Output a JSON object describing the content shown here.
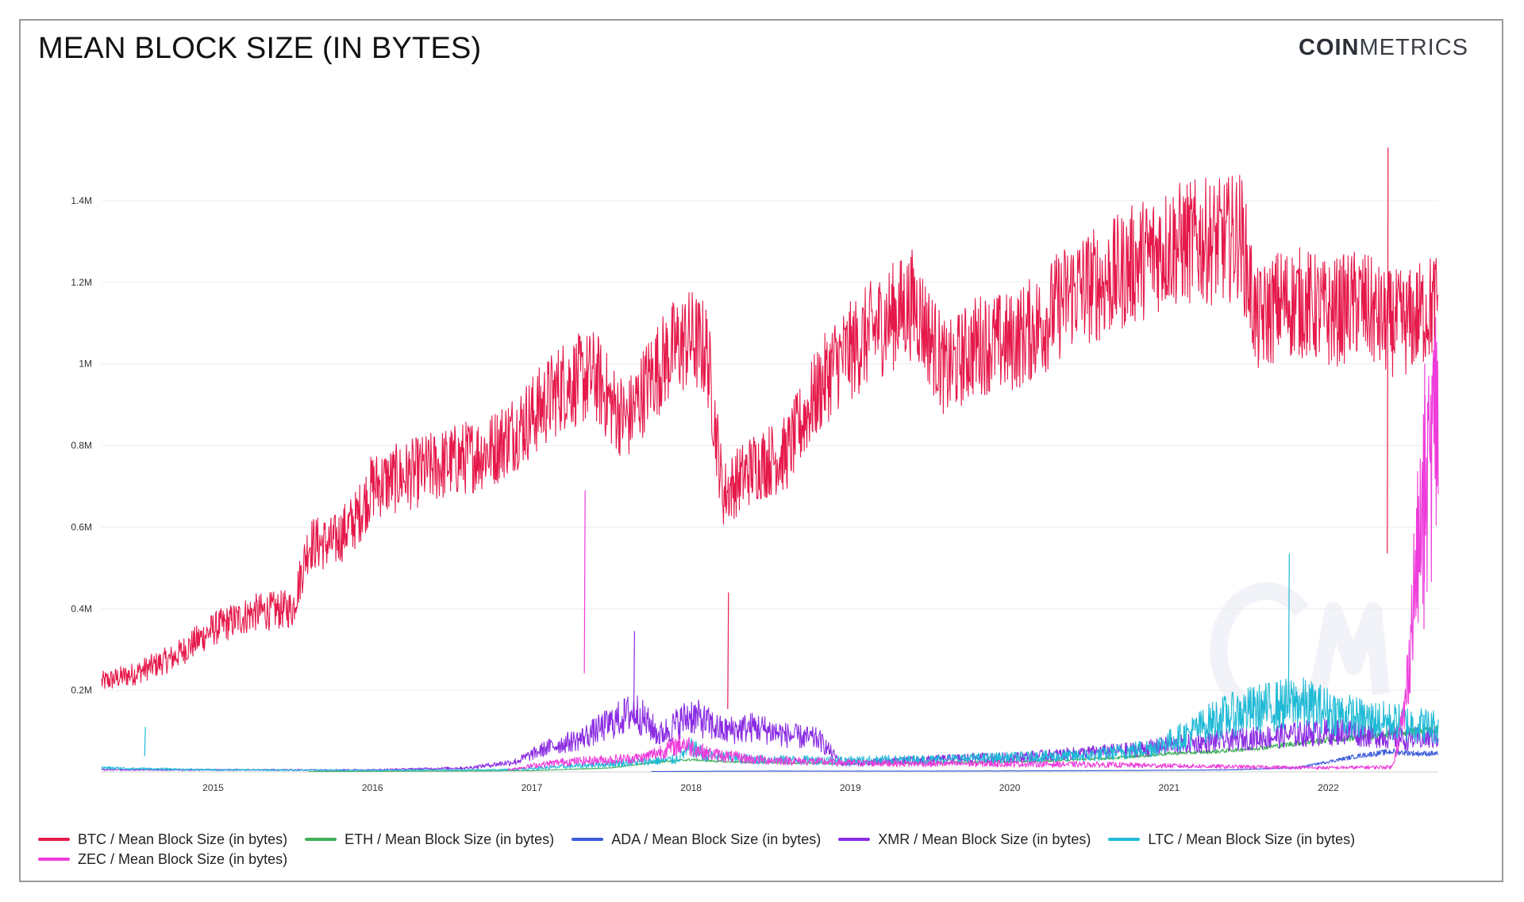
{
  "header": {
    "title": "MEAN BLOCK SIZE (IN BYTES)",
    "brand_bold": "COIN",
    "brand_rest": "METRICS"
  },
  "chart_data": {
    "type": "line",
    "title": "MEAN BLOCK SIZE (IN BYTES)",
    "xlabel": "",
    "ylabel": "",
    "xlim": [
      2014.3,
      2022.69
    ],
    "ylim": [
      0,
      1600000
    ],
    "grid": true,
    "legend": "bottom",
    "x_ticks": [
      {
        "value": 2015,
        "label": "2015"
      },
      {
        "value": 2016,
        "label": "2016"
      },
      {
        "value": 2017,
        "label": "2017"
      },
      {
        "value": 2018,
        "label": "2018"
      },
      {
        "value": 2019,
        "label": "2019"
      },
      {
        "value": 2020,
        "label": "2020"
      },
      {
        "value": 2021,
        "label": "2021"
      },
      {
        "value": 2022,
        "label": "2022"
      }
    ],
    "y_ticks": [
      {
        "value": 200000,
        "label": "0.2M"
      },
      {
        "value": 400000,
        "label": "0.4M"
      },
      {
        "value": 600000,
        "label": "0.6M"
      },
      {
        "value": 800000,
        "label": "0.8M"
      },
      {
        "value": 1000000,
        "label": "1M"
      },
      {
        "value": 1200000,
        "label": "1.2M"
      },
      {
        "value": 1400000,
        "label": "1.4M"
      }
    ],
    "series": [
      {
        "name": "BTC / Mean Block Size (in bytes)",
        "color": "#e5194a",
        "noise": 0.12,
        "points": [
          [
            2014.3,
            220000
          ],
          [
            2014.5,
            240000
          ],
          [
            2014.75,
            280000
          ],
          [
            2015.0,
            350000
          ],
          [
            2015.25,
            390000
          ],
          [
            2015.5,
            400000
          ],
          [
            2015.6,
            560000
          ],
          [
            2015.75,
            560000
          ],
          [
            2015.9,
            620000
          ],
          [
            2016.0,
            700000
          ],
          [
            2016.25,
            730000
          ],
          [
            2016.5,
            760000
          ],
          [
            2016.75,
            790000
          ],
          [
            2017.0,
            870000
          ],
          [
            2017.2,
            950000
          ],
          [
            2017.4,
            970000
          ],
          [
            2017.5,
            900000
          ],
          [
            2017.6,
            860000
          ],
          [
            2017.75,
            970000
          ],
          [
            2017.9,
            1040000
          ],
          [
            2018.0,
            1060000
          ],
          [
            2018.1,
            1030000
          ],
          [
            2018.2,
            680000
          ],
          [
            2018.4,
            750000
          ],
          [
            2018.6,
            780000
          ],
          [
            2018.75,
            900000
          ],
          [
            2018.9,
            1000000
          ],
          [
            2019.0,
            1030000
          ],
          [
            2019.2,
            1100000
          ],
          [
            2019.4,
            1150000
          ],
          [
            2019.6,
            980000
          ],
          [
            2019.8,
            1050000
          ],
          [
            2020.0,
            1050000
          ],
          [
            2020.2,
            1100000
          ],
          [
            2020.4,
            1180000
          ],
          [
            2020.6,
            1200000
          ],
          [
            2020.8,
            1250000
          ],
          [
            2021.0,
            1290000
          ],
          [
            2021.2,
            1300000
          ],
          [
            2021.35,
            1300000
          ],
          [
            2021.45,
            1320000
          ],
          [
            2021.55,
            1100000
          ],
          [
            2021.7,
            1150000
          ],
          [
            2021.85,
            1150000
          ],
          [
            2022.0,
            1120000
          ],
          [
            2022.2,
            1150000
          ],
          [
            2022.35,
            1100000
          ],
          [
            2022.5,
            1100000
          ],
          [
            2022.69,
            1150000
          ]
        ]
      },
      {
        "name": "ETH / Mean Block Size (in bytes)",
        "color": "#3fb15a",
        "noise": 0.1,
        "points": [
          [
            2015.6,
            1000
          ],
          [
            2016.5,
            2000
          ],
          [
            2017.0,
            3000
          ],
          [
            2017.5,
            10000
          ],
          [
            2017.8,
            25000
          ],
          [
            2018.0,
            30000
          ],
          [
            2018.2,
            25000
          ],
          [
            2018.6,
            22000
          ],
          [
            2019.0,
            20000
          ],
          [
            2019.5,
            22000
          ],
          [
            2020.0,
            25000
          ],
          [
            2020.3,
            28000
          ],
          [
            2020.7,
            35000
          ],
          [
            2021.0,
            45000
          ],
          [
            2021.3,
            50000
          ],
          [
            2021.6,
            60000
          ],
          [
            2021.9,
            75000
          ],
          [
            2022.2,
            85000
          ],
          [
            2022.45,
            95000
          ],
          [
            2022.69,
            105000
          ]
        ]
      },
      {
        "name": "ADA / Mean Block Size (in bytes)",
        "color": "#3b5bdb",
        "noise": 0.15,
        "points": [
          [
            2017.75,
            1000
          ],
          [
            2018.5,
            2000
          ],
          [
            2019.5,
            2000
          ],
          [
            2020.5,
            3000
          ],
          [
            2021.0,
            4000
          ],
          [
            2021.4,
            5000
          ],
          [
            2021.8,
            10000
          ],
          [
            2022.0,
            25000
          ],
          [
            2022.2,
            40000
          ],
          [
            2022.4,
            50000
          ],
          [
            2022.55,
            45000
          ],
          [
            2022.69,
            45000
          ]
        ]
      },
      {
        "name": "XMR / Mean Block Size (in bytes)",
        "color": "#8a2be2",
        "noise": 0.35,
        "points": [
          [
            2014.3,
            5000
          ],
          [
            2016.0,
            5000
          ],
          [
            2016.6,
            10000
          ],
          [
            2016.9,
            25000
          ],
          [
            2017.1,
            60000
          ],
          [
            2017.3,
            80000
          ],
          [
            2017.5,
            120000
          ],
          [
            2017.65,
            150000
          ],
          [
            2017.8,
            90000
          ],
          [
            2018.0,
            140000
          ],
          [
            2018.2,
            100000
          ],
          [
            2018.4,
            110000
          ],
          [
            2018.6,
            90000
          ],
          [
            2018.8,
            80000
          ],
          [
            2018.95,
            20000
          ],
          [
            2019.2,
            25000
          ],
          [
            2019.5,
            30000
          ],
          [
            2019.8,
            35000
          ],
          [
            2020.0,
            35000
          ],
          [
            2020.4,
            45000
          ],
          [
            2020.8,
            55000
          ],
          [
            2021.0,
            65000
          ],
          [
            2021.3,
            75000
          ],
          [
            2021.6,
            85000
          ],
          [
            2021.9,
            95000
          ],
          [
            2022.1,
            100000
          ],
          [
            2022.3,
            90000
          ],
          [
            2022.5,
            80000
          ],
          [
            2022.69,
            85000
          ]
        ]
      },
      {
        "name": "LTC / Mean Block Size (in bytes)",
        "color": "#1fbad6",
        "noise": 0.4,
        "points": [
          [
            2014.3,
            10000
          ],
          [
            2014.5,
            8000
          ],
          [
            2015.0,
            5000
          ],
          [
            2016.0,
            4000
          ],
          [
            2016.8,
            5000
          ],
          [
            2017.0,
            8000
          ],
          [
            2017.5,
            20000
          ],
          [
            2017.9,
            30000
          ],
          [
            2018.0,
            60000
          ],
          [
            2018.1,
            40000
          ],
          [
            2018.4,
            30000
          ],
          [
            2019.0,
            28000
          ],
          [
            2019.5,
            30000
          ],
          [
            2020.0,
            35000
          ],
          [
            2020.5,
            40000
          ],
          [
            2020.9,
            60000
          ],
          [
            2021.1,
            90000
          ],
          [
            2021.3,
            130000
          ],
          [
            2021.5,
            150000
          ],
          [
            2021.8,
            170000
          ],
          [
            2022.0,
            150000
          ],
          [
            2022.2,
            130000
          ],
          [
            2022.45,
            120000
          ],
          [
            2022.69,
            110000
          ]
        ]
      },
      {
        "name": "ZEC / Mean Block Size (in bytes)",
        "color": "#ee3cdb",
        "noise": 0.4,
        "points": [
          [
            2016.85,
            5000
          ],
          [
            2017.0,
            15000
          ],
          [
            2017.2,
            25000
          ],
          [
            2017.5,
            30000
          ],
          [
            2017.7,
            35000
          ],
          [
            2017.95,
            70000
          ],
          [
            2018.1,
            45000
          ],
          [
            2018.4,
            30000
          ],
          [
            2018.8,
            25000
          ],
          [
            2019.0,
            22000
          ],
          [
            2019.5,
            20000
          ],
          [
            2020.0,
            20000
          ],
          [
            2020.5,
            18000
          ],
          [
            2021.0,
            15000
          ],
          [
            2021.5,
            12000
          ],
          [
            2022.0,
            10000
          ],
          [
            2022.4,
            12000
          ],
          [
            2022.48,
            150000
          ],
          [
            2022.55,
            500000
          ],
          [
            2022.62,
            700000
          ],
          [
            2022.69,
            900000
          ]
        ]
      }
    ],
    "annotations": [
      {
        "series": "BTC / Mean Block Size (in bytes)",
        "x": 2022.37,
        "y": 1530000
      },
      {
        "series": "BTC / Mean Block Size (in bytes)",
        "x": 2018.23,
        "y": 440000
      },
      {
        "series": "ZEC / Mean Block Size (in bytes)",
        "x": 2017.33,
        "y": 690000
      },
      {
        "series": "XMR / Mean Block Size (in bytes)",
        "x": 2017.64,
        "y": 345000
      },
      {
        "series": "LTC / Mean Block Size (in bytes)",
        "x": 2021.75,
        "y": 535000
      },
      {
        "series": "LTC / Mean Block Size (in bytes)",
        "x": 2014.57,
        "y": 110000
      },
      {
        "series": "ZEC / Mean Block Size (in bytes)",
        "x": 2022.6,
        "y": 1000000
      }
    ]
  }
}
